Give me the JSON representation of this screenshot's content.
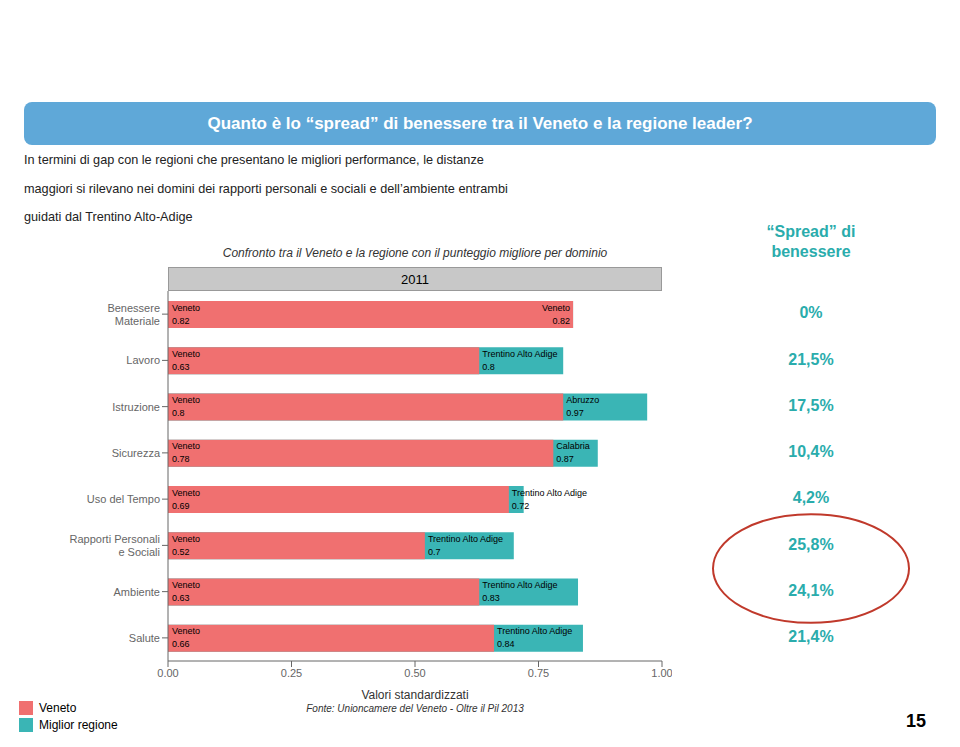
{
  "chart_data": {
    "type": "bar",
    "orientation": "horizontal",
    "page_title": "Quanto è lo “spread” di benessere tra il Veneto e la regione leader?",
    "body_text": [
      "In termini di gap con le regioni che presentano le migliori performance, le distanze",
      "maggiori si rilevano nei domini dei rapporti personali e sociali e dell’ambiente entrambi",
      "guidati dal Trentino Alto-Adige"
    ],
    "title": "Confronto tra il Veneto e la regione con il punteggio migliore per dominio",
    "subtitle": "2011",
    "x_label": "Valori standardizzati",
    "source": "Fonte: Unioncamere del Veneto - Oltre il Pil 2013",
    "page_number": "15",
    "categories": [
      "Benessere\nMateriale",
      "Lavoro",
      "Istruzione",
      "Sicurezza",
      "Uso del Tempo",
      "Rapporti Personali\ne Sociali",
      "Ambiente",
      "Salute"
    ],
    "series": [
      {
        "name": "Veneto",
        "color": "#F07070",
        "values": [
          0.82,
          0.63,
          0.8,
          0.78,
          0.69,
          0.52,
          0.63,
          0.66
        ],
        "labels": [
          "Veneto",
          "Veneto",
          "Veneto",
          "Veneto",
          "Veneto",
          "Veneto",
          "Veneto",
          "Veneto"
        ]
      },
      {
        "name": "Miglior regione",
        "color": "#3AB5B5",
        "values": [
          0.82,
          0.8,
          0.97,
          0.87,
          0.72,
          0.7,
          0.83,
          0.84
        ],
        "labels": [
          "Veneto",
          "Trentino Alto Adige",
          "Abruzzo",
          "Calabria",
          "Trentino Alto Adige",
          "Trentino Alto Adige",
          "Trentino Alto Adige",
          "Trentino Alto Adige"
        ]
      }
    ],
    "xlim": [
      0.0,
      1.0
    ],
    "xticks": [
      {
        "value": 0.0,
        "label": "0.00"
      },
      0.25,
      {
        "value": 0.5,
        "label": "0.50"
      },
      0.75,
      {
        "value": 1.0,
        "label": "1.00"
      }
    ],
    "data_labels": true,
    "legend": "lower left",
    "side_panel": {
      "title_lines": [
        "“Spread” di",
        "benessere"
      ],
      "labels": [
        "0%",
        "21,5%",
        "17,5%",
        "10,4%",
        "4,2%",
        "25,8%",
        "24,1%",
        "21,4%"
      ],
      "color": "#2AACAC",
      "highlight": {
        "categories": [
          "Rapporti Personali\ne Sociali",
          "Ambiente"
        ],
        "color": "#C0392B"
      }
    }
  }
}
